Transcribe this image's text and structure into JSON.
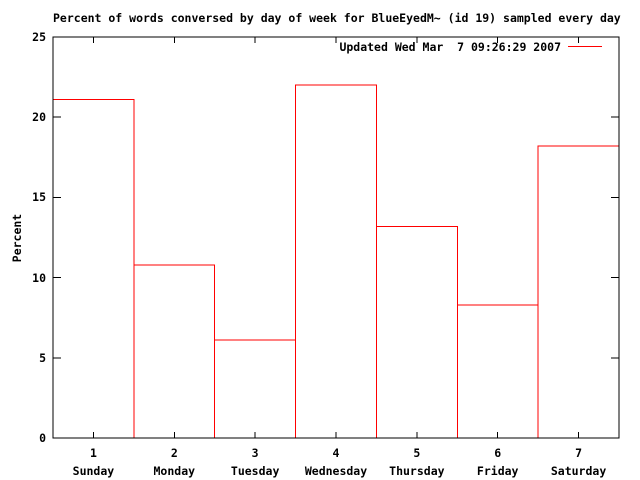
{
  "title": "Percent of words conversed by day of week for BlueEyedM~ (id 19) sampled every day",
  "legend": {
    "label": "Updated Wed Mar  7 09:26:29 2007"
  },
  "colors": {
    "series": "#ff0000",
    "axis": "#000000",
    "text": "#000000",
    "background": "#ffffff"
  },
  "chart_data": {
    "type": "bar",
    "title": "Percent of words conversed by day of week for BlueEyedM~ (id 19) sampled every day",
    "xlabel": "",
    "ylabel": "Percent",
    "categories": [
      "Sunday",
      "Monday",
      "Tuesday",
      "Wednesday",
      "Thursday",
      "Friday",
      "Saturday"
    ],
    "x": [
      1,
      2,
      3,
      4,
      5,
      6,
      7
    ],
    "values": [
      21.1,
      10.8,
      6.1,
      22.0,
      13.2,
      8.3,
      18.2
    ],
    "xlim": [
      0.5,
      7.5
    ],
    "ylim": [
      0,
      25
    ],
    "yticks": [
      0,
      5,
      10,
      15,
      20,
      25
    ],
    "xticks": [
      1,
      2,
      3,
      4,
      5,
      6,
      7
    ],
    "grid": false,
    "bar_style": "outline-unfilled",
    "bar_width": 1.0,
    "series_color": "#ff0000",
    "legend": "Updated Wed Mar  7 09:26:29 2007",
    "legend_position": "top-right"
  }
}
